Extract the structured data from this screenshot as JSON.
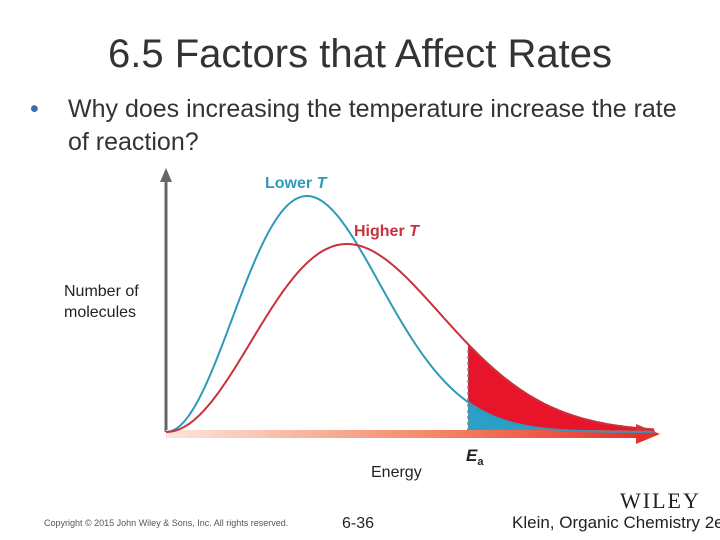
{
  "slide": {
    "title": "6.5 Factors that Affect Rates",
    "bullet": "Why does increasing the temperature increase the rate of reaction?"
  },
  "figure": {
    "y_axis_label_line1": "Number of",
    "y_axis_label_line2": "molecules",
    "x_axis_label": "Energy",
    "activation_energy_label": "E",
    "activation_energy_subscript": "a",
    "curves": [
      {
        "name": "Lower T",
        "label_main": "Lower ",
        "label_var": "T",
        "color": "#2e9ab8"
      },
      {
        "name": "Higher T",
        "label_main": "Higher ",
        "label_var": "T",
        "color": "#c8323c"
      }
    ],
    "fill_colors": {
      "higher_t_tail": "#e8142a",
      "lower_t_tail": "#2aa0c8"
    }
  },
  "footer": {
    "copyright": "Copyright © 2015 John Wiley & Sons, Inc. All rights reserved.",
    "page_number": "6-36",
    "book": "Klein, Organic Chemistry 2e",
    "logo": "WILEY"
  }
}
